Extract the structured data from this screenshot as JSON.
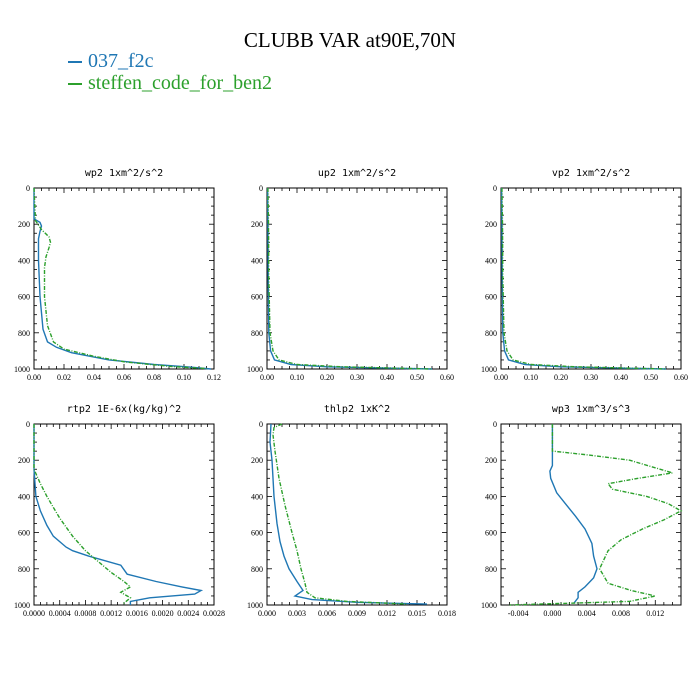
{
  "title": "CLUBB VAR at90E,70N",
  "legend": [
    {
      "name": "037_f2c",
      "color": "#1f77b4"
    },
    {
      "name": "steffen_code_for_ben2",
      "color": "#2ca02c"
    }
  ],
  "chart_data": [
    {
      "type": "line",
      "title": "wp2   1xm^2/s^2",
      "xlim": [
        0,
        0.12
      ],
      "ylim": [
        0,
        1000
      ],
      "y_inverted": true,
      "xticks": [
        0.0,
        0.02,
        0.04,
        0.06,
        0.08,
        0.1,
        0.12
      ],
      "xtick_labels": [
        "0.00",
        "0.02",
        "0.04",
        "0.06",
        "0.08",
        "0.10",
        "0.12"
      ],
      "yticks": [
        0,
        200,
        400,
        600,
        800,
        1000
      ],
      "ytick_labels": [
        "0",
        "200",
        "400",
        "600",
        "800",
        "1000"
      ],
      "series": [
        {
          "name": "037_f2c",
          "color": "#1f77b4",
          "points": [
            [
              0,
              0
            ],
            [
              0,
              170
            ],
            [
              0.004,
              190
            ],
            [
              0.005,
              210
            ],
            [
              0.004,
              240
            ],
            [
              0.003,
              280
            ],
            [
              0.003,
              400
            ],
            [
              0.004,
              600
            ],
            [
              0.006,
              780
            ],
            [
              0.009,
              850
            ],
            [
              0.015,
              880
            ],
            [
              0.025,
              910
            ],
            [
              0.05,
              950
            ],
            [
              0.08,
              975
            ],
            [
              0.105,
              990
            ],
            [
              0.118,
              1000
            ]
          ]
        },
        {
          "name": "steffen_code_for_ben2",
          "color": "#2ca02c",
          "points": [
            [
              0,
              0
            ],
            [
              0.001,
              180
            ],
            [
              0.005,
              230
            ],
            [
              0.01,
              270
            ],
            [
              0.011,
              300
            ],
            [
              0.01,
              330
            ],
            [
              0.008,
              380
            ],
            [
              0.007,
              440
            ],
            [
              0.007,
              600
            ],
            [
              0.009,
              760
            ],
            [
              0.013,
              850
            ],
            [
              0.02,
              890
            ],
            [
              0.04,
              930
            ],
            [
              0.06,
              960
            ],
            [
              0.09,
              985
            ],
            [
              0.115,
              998
            ]
          ]
        }
      ]
    },
    {
      "type": "line",
      "title": "up2   1xm^2/s^2",
      "xlim": [
        0,
        0.6
      ],
      "ylim": [
        0,
        1000
      ],
      "y_inverted": true,
      "xticks": [
        0.0,
        0.1,
        0.2,
        0.3,
        0.4,
        0.5,
        0.6
      ],
      "xtick_labels": [
        "0.00",
        "0.10",
        "0.20",
        "0.30",
        "0.40",
        "0.50",
        "0.60"
      ],
      "yticks": [
        0,
        200,
        400,
        600,
        800,
        1000
      ],
      "ytick_labels": [
        "0",
        "200",
        "400",
        "600",
        "800",
        "1000"
      ],
      "series": [
        {
          "name": "037_f2c",
          "color": "#1f77b4",
          "points": [
            [
              0.002,
              0
            ],
            [
              0.003,
              200
            ],
            [
              0.004,
              500
            ],
            [
              0.006,
              800
            ],
            [
              0.012,
              900
            ],
            [
              0.025,
              950
            ],
            [
              0.08,
              975
            ],
            [
              0.2,
              988
            ],
            [
              0.4,
              995
            ],
            [
              0.55,
              1000
            ]
          ]
        },
        {
          "name": "steffen_code_for_ben2",
          "color": "#2ca02c",
          "points": [
            [
              0.003,
              0
            ],
            [
              0.005,
              200
            ],
            [
              0.006,
              500
            ],
            [
              0.01,
              800
            ],
            [
              0.02,
              900
            ],
            [
              0.04,
              950
            ],
            [
              0.1,
              975
            ],
            [
              0.25,
              988
            ],
            [
              0.45,
              996
            ],
            [
              0.55,
              1000
            ]
          ]
        }
      ]
    },
    {
      "type": "line",
      "title": "vp2   1xm^2/s^2",
      "xlim": [
        0,
        0.6
      ],
      "ylim": [
        0,
        1000
      ],
      "y_inverted": true,
      "xticks": [
        0.0,
        0.1,
        0.2,
        0.3,
        0.4,
        0.5,
        0.6
      ],
      "xtick_labels": [
        "0.00",
        "0.10",
        "0.20",
        "0.30",
        "0.40",
        "0.50",
        "0.60"
      ],
      "yticks": [
        0,
        200,
        400,
        600,
        800,
        1000
      ],
      "ytick_labels": [
        "0",
        "200",
        "400",
        "600",
        "800",
        "1000"
      ],
      "series": [
        {
          "name": "037_f2c",
          "color": "#1f77b4",
          "points": [
            [
              0.002,
              0
            ],
            [
              0.003,
              200
            ],
            [
              0.004,
              500
            ],
            [
              0.006,
              800
            ],
            [
              0.012,
              900
            ],
            [
              0.025,
              950
            ],
            [
              0.08,
              975
            ],
            [
              0.2,
              988
            ],
            [
              0.4,
              995
            ],
            [
              0.55,
              1000
            ]
          ]
        },
        {
          "name": "steffen_code_for_ben2",
          "color": "#2ca02c",
          "points": [
            [
              0.003,
              0
            ],
            [
              0.005,
              200
            ],
            [
              0.006,
              500
            ],
            [
              0.01,
              800
            ],
            [
              0.02,
              900
            ],
            [
              0.04,
              950
            ],
            [
              0.1,
              975
            ],
            [
              0.25,
              988
            ],
            [
              0.45,
              996
            ],
            [
              0.55,
              1000
            ]
          ]
        }
      ]
    },
    {
      "type": "line",
      "title": "rtp2   1E-6x(kg/kg)^2",
      "xlim": [
        0,
        0.0028
      ],
      "ylim": [
        0,
        1000
      ],
      "y_inverted": true,
      "xticks": [
        0,
        0.0004,
        0.0008,
        0.0012,
        0.0016,
        0.002,
        0.0024,
        0.0028
      ],
      "xtick_labels": [
        "0.0000",
        "0.0004",
        "0.0008",
        "0.0012",
        "0.0016",
        "0.0020",
        "0.0024",
        "0.0028"
      ],
      "yticks": [
        0,
        200,
        400,
        600,
        800,
        1000
      ],
      "ytick_labels": [
        "0",
        "200",
        "400",
        "600",
        "800",
        "1000"
      ],
      "series": [
        {
          "name": "037_f2c",
          "color": "#1f77b4",
          "points": [
            [
              0,
              0
            ],
            [
              0,
              250
            ],
            [
              3e-05,
              400
            ],
            [
              0.0001,
              480
            ],
            [
              0.0002,
              560
            ],
            [
              0.0003,
              620
            ],
            [
              0.0005,
              680
            ],
            [
              0.0006,
              700
            ],
            [
              0.00085,
              730
            ],
            [
              0.00135,
              780
            ],
            [
              0.00145,
              830
            ],
            [
              0.0019,
              870
            ],
            [
              0.0023,
              900
            ],
            [
              0.0026,
              920
            ],
            [
              0.0025,
              940
            ],
            [
              0.0018,
              960
            ],
            [
              0.0015,
              980
            ],
            [
              0.0015,
              1000
            ]
          ]
        },
        {
          "name": "steffen_code_for_ben2",
          "color": "#2ca02c",
          "points": [
            [
              0,
              0
            ],
            [
              0,
              250
            ],
            [
              0.0001,
              330
            ],
            [
              0.0002,
              400
            ],
            [
              0.0003,
              460
            ],
            [
              0.0004,
              520
            ],
            [
              0.0006,
              620
            ],
            [
              0.0008,
              700
            ],
            [
              0.001,
              760
            ],
            [
              0.0012,
              820
            ],
            [
              0.0014,
              870
            ],
            [
              0.0015,
              900
            ],
            [
              0.00135,
              930
            ],
            [
              0.0015,
              960
            ],
            [
              0.0014,
              990
            ],
            [
              0.0014,
              1000
            ]
          ]
        }
      ]
    },
    {
      "type": "line",
      "title": "thlp2   1xK^2",
      "xlim": [
        0,
        0.018
      ],
      "ylim": [
        0,
        1000
      ],
      "y_inverted": true,
      "xticks": [
        0,
        0.003,
        0.006,
        0.009,
        0.012,
        0.015,
        0.018
      ],
      "xtick_labels": [
        "0.000",
        "0.003",
        "0.006",
        "0.009",
        "0.012",
        "0.015",
        "0.018"
      ],
      "yticks": [
        0,
        200,
        400,
        600,
        800,
        1000
      ],
      "ytick_labels": [
        "0",
        "200",
        "400",
        "600",
        "800",
        "1000"
      ],
      "series": [
        {
          "name": "037_f2c",
          "color": "#1f77b4",
          "points": [
            [
              0.0004,
              0
            ],
            [
              0.0003,
              100
            ],
            [
              0.0005,
              200
            ],
            [
              0.0007,
              400
            ],
            [
              0.001,
              550
            ],
            [
              0.0013,
              650
            ],
            [
              0.0017,
              730
            ],
            [
              0.0022,
              800
            ],
            [
              0.003,
              870
            ],
            [
              0.0036,
              920
            ],
            [
              0.0028,
              950
            ],
            [
              0.0045,
              970
            ],
            [
              0.009,
              985
            ],
            [
              0.016,
              995
            ]
          ]
        },
        {
          "name": "steffen_code_for_ben2",
          "color": "#2ca02c",
          "points": [
            [
              0.0015,
              0
            ],
            [
              0.0007,
              20
            ],
            [
              0.0006,
              60
            ],
            [
              0.0008,
              150
            ],
            [
              0.0012,
              300
            ],
            [
              0.0018,
              450
            ],
            [
              0.0025,
              600
            ],
            [
              0.003,
              700
            ],
            [
              0.0034,
              800
            ],
            [
              0.0038,
              880
            ],
            [
              0.004,
              930
            ],
            [
              0.0048,
              960
            ],
            [
              0.008,
              980
            ],
            [
              0.014,
              995
            ]
          ]
        }
      ]
    },
    {
      "type": "line",
      "title": "wp3   1xm^3/s^3",
      "xlim": [
        -0.006,
        0.015
      ],
      "ylim": [
        0,
        1000
      ],
      "y_inverted": true,
      "xticks": [
        -0.004,
        0.0,
        0.004,
        0.008,
        0.012
      ],
      "xtick_labels": [
        "-0.004",
        "0.000",
        "0.004",
        "0.008",
        "0.012"
      ],
      "yticks": [
        0,
        200,
        400,
        600,
        800,
        1000
      ],
      "ytick_labels": [
        "0",
        "200",
        "400",
        "600",
        "800",
        "1000"
      ],
      "series": [
        {
          "name": "037_f2c",
          "color": "#1f77b4",
          "points": [
            [
              0,
              0
            ],
            [
              0,
              230
            ],
            [
              -0.0003,
              260
            ],
            [
              -0.0002,
              300
            ],
            [
              0.0005,
              380
            ],
            [
              0.0015,
              440
            ],
            [
              0.0027,
              510
            ],
            [
              0.0038,
              580
            ],
            [
              0.0046,
              660
            ],
            [
              0.0048,
              730
            ],
            [
              0.0052,
              800
            ],
            [
              0.0048,
              850
            ],
            [
              0.0038,
              900
            ],
            [
              0.003,
              930
            ],
            [
              0.003,
              960
            ],
            [
              0.0025,
              990
            ]
          ]
        },
        {
          "name": "steffen_code_for_ben2",
          "color": "#2ca02c",
          "points": [
            [
              0,
              0
            ],
            [
              0,
              150
            ],
            [
              0.004,
              170
            ],
            [
              0.009,
              200
            ],
            [
              0.014,
              270
            ],
            [
              0.01,
              300
            ],
            [
              0.0065,
              330
            ],
            [
              0.007,
              360
            ],
            [
              0.011,
              400
            ],
            [
              0.0135,
              440
            ],
            [
              0.015,
              480
            ],
            [
              0.013,
              530
            ],
            [
              0.0105,
              580
            ],
            [
              0.008,
              640
            ],
            [
              0.0065,
              700
            ],
            [
              0.0055,
              800
            ],
            [
              0.0065,
              880
            ],
            [
              0.0092,
              920
            ],
            [
              0.012,
              950
            ],
            [
              0.009,
              980
            ],
            [
              -0.005,
              1000
            ]
          ]
        }
      ]
    }
  ]
}
